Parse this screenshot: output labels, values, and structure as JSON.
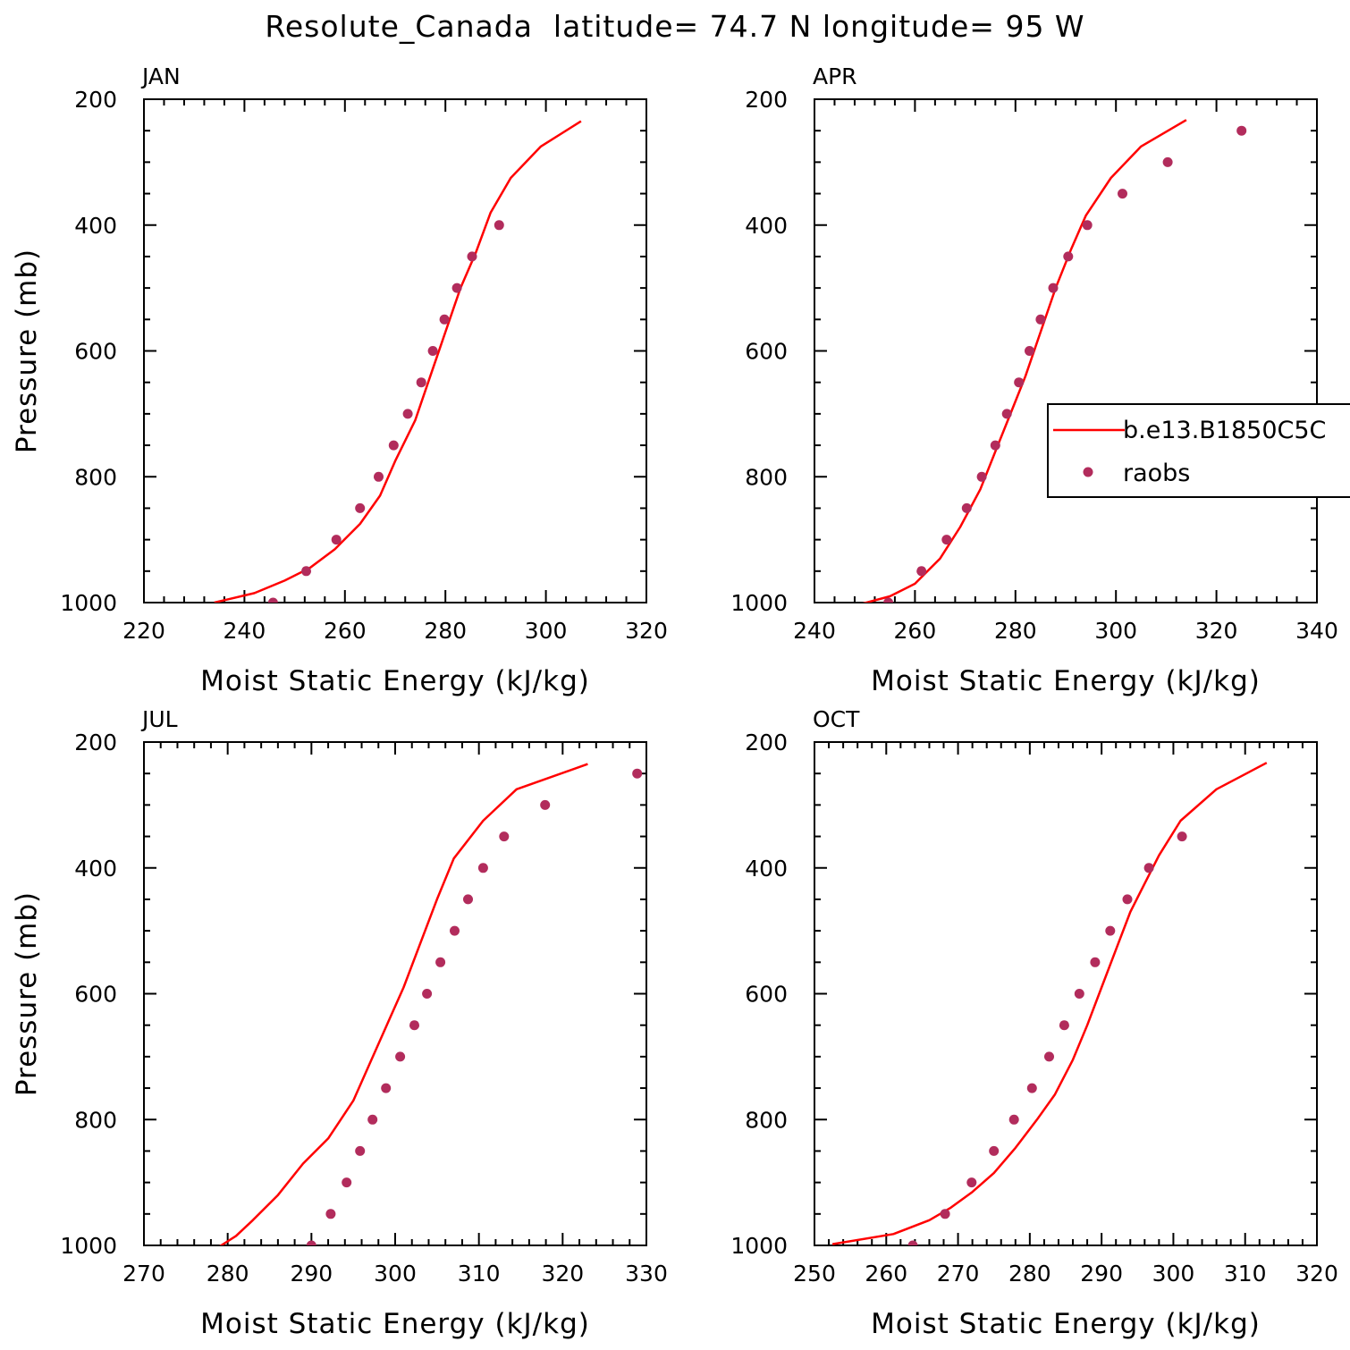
{
  "figure": {
    "title": "Resolute_Canada  latitude= 74.7 N longitude= 95 W"
  },
  "colors": {
    "model": "#ff0000",
    "obs": "#b22c5c"
  },
  "legend": {
    "placement": "right, inside APR panel",
    "items": [
      "b.e13.B1850C5C",
      "raobs"
    ]
  },
  "chart_data": [
    {
      "type": "line",
      "panel_label": "JAN",
      "xlabel": "Moist Static Energy (kJ/kg)",
      "ylabel": "Pressure (mb)",
      "xlim": [
        220,
        320
      ],
      "ylim": [
        1000,
        200
      ],
      "y_inverted": true,
      "xticks": [
        220,
        240,
        260,
        280,
        300,
        320
      ],
      "yticks": [
        200,
        400,
        600,
        800,
        1000
      ],
      "series": [
        {
          "name": "b.e13.B1850C5C",
          "kind": "line",
          "x": [
            234,
            242,
            248,
            253,
            258,
            263,
            267,
            270,
            274,
            277,
            280,
            283,
            286,
            289,
            293,
            299,
            307
          ],
          "y": [
            1000,
            985,
            965,
            945,
            915,
            875,
            830,
            775,
            710,
            640,
            570,
            500,
            445,
            380,
            325,
            275,
            235
          ]
        },
        {
          "name": "raobs",
          "kind": "scatter",
          "x": [
            245.7,
            252.3,
            258.3,
            263.0,
            266.7,
            269.7,
            272.5,
            275.2,
            277.5,
            279.8,
            282.3,
            285.3,
            290.7
          ],
          "y": [
            1000,
            950,
            900,
            850,
            800,
            750,
            700,
            650,
            600,
            550,
            500,
            450,
            400
          ]
        }
      ]
    },
    {
      "type": "line",
      "panel_label": "APR",
      "xlabel": "Moist Static Energy (kJ/kg)",
      "ylabel": "",
      "xlim": [
        240,
        340
      ],
      "ylim": [
        1000,
        200
      ],
      "y_inverted": true,
      "xticks": [
        240,
        260,
        280,
        300,
        320,
        340
      ],
      "yticks": [
        200,
        400,
        600,
        800,
        1000
      ],
      "series": [
        {
          "name": "b.e13.B1850C5C",
          "kind": "line",
          "x": [
            248,
            255,
            260,
            265,
            269,
            273,
            276,
            279,
            282,
            285,
            288,
            291,
            294,
            299,
            305,
            314
          ],
          "y": [
            1005,
            990,
            970,
            930,
            880,
            820,
            760,
            700,
            640,
            570,
            500,
            440,
            385,
            325,
            275,
            233
          ]
        },
        {
          "name": "raobs",
          "kind": "scatter",
          "x": [
            254.7,
            261.3,
            266.3,
            270.3,
            273.3,
            276.0,
            278.3,
            280.7,
            282.8,
            285.0,
            287.5,
            290.5,
            294.3,
            301.3,
            310.3,
            325.0
          ],
          "y": [
            1000,
            950,
            900,
            850,
            800,
            750,
            700,
            650,
            600,
            550,
            500,
            450,
            400,
            350,
            300,
            250
          ]
        }
      ]
    },
    {
      "type": "line",
      "panel_label": "JUL",
      "xlabel": "Moist Static Energy (kJ/kg)",
      "ylabel": "Pressure (mb)",
      "xlim": [
        270,
        330
      ],
      "ylim": [
        1000,
        200
      ],
      "y_inverted": true,
      "xticks": [
        270,
        280,
        290,
        300,
        310,
        320,
        330
      ],
      "yticks": [
        200,
        400,
        600,
        800,
        1000
      ],
      "series": [
        {
          "name": "b.e13.B1850C5C",
          "kind": "line",
          "x": [
            279,
            281,
            283,
            286,
            289,
            292,
            295,
            297,
            299,
            301,
            303,
            305,
            307,
            310.5,
            314.5,
            323
          ],
          "y": [
            1002,
            985,
            960,
            920,
            870,
            830,
            770,
            710,
            650,
            590,
            520,
            450,
            385,
            325,
            275,
            235
          ]
        },
        {
          "name": "raobs",
          "kind": "scatter",
          "x": [
            290.0,
            292.3,
            294.2,
            295.8,
            297.3,
            298.9,
            300.6,
            302.3,
            303.8,
            305.4,
            307.1,
            308.7,
            310.5,
            313.0,
            317.9,
            328.9
          ],
          "y": [
            1000,
            950,
            900,
            850,
            800,
            750,
            700,
            650,
            600,
            550,
            500,
            450,
            400,
            350,
            300,
            250
          ]
        }
      ]
    },
    {
      "type": "line",
      "panel_label": "OCT",
      "xlabel": "Moist Static Energy (kJ/kg)",
      "ylabel": "",
      "xlim": [
        250,
        320
      ],
      "ylim": [
        1000,
        200
      ],
      "y_inverted": true,
      "xticks": [
        250,
        260,
        270,
        280,
        290,
        300,
        310,
        320
      ],
      "yticks": [
        200,
        400,
        600,
        800,
        1000
      ],
      "series": [
        {
          "name": "b.e13.B1850C5C",
          "kind": "line",
          "x": [
            252.5,
            261,
            266,
            269,
            272,
            275,
            278,
            281,
            283.5,
            286,
            288,
            290,
            292,
            294,
            296,
            298,
            301,
            306,
            313
          ],
          "y": [
            998,
            982,
            960,
            940,
            915,
            885,
            845,
            800,
            760,
            705,
            650,
            590,
            530,
            470,
            425,
            380,
            325,
            275,
            233
          ]
        },
        {
          "name": "raobs",
          "kind": "scatter",
          "x": [
            263.7,
            268.2,
            271.9,
            275.0,
            277.8,
            280.3,
            282.7,
            284.8,
            286.9,
            289.1,
            291.2,
            293.6,
            296.6,
            301.2
          ],
          "y": [
            1000,
            950,
            900,
            850,
            800,
            750,
            700,
            650,
            600,
            550,
            500,
            450,
            400,
            350
          ]
        }
      ]
    }
  ]
}
